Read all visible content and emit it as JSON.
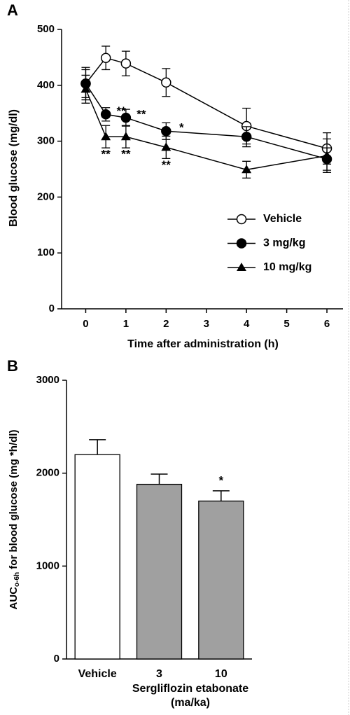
{
  "chart_data": [
    {
      "type": "line",
      "panel": "A",
      "xlabel": "Time after administration (h)",
      "ylabel": "Blood glucose (mg/dl)",
      "x": [
        0,
        0.5,
        1,
        2,
        4,
        6
      ],
      "xlim": [
        -0.6,
        6.4
      ],
      "xticks": [
        0,
        1,
        2,
        3,
        4,
        5,
        6
      ],
      "ylim": [
        0,
        500
      ],
      "yticks": [
        0,
        100,
        200,
        300,
        400,
        500
      ],
      "series": [
        {
          "name": "Vehicle",
          "color": "#000000",
          "marker": "circle-open",
          "values": [
            403,
            449,
            439,
            405,
            327,
            287
          ],
          "errors": [
            29,
            21,
            22,
            25,
            32,
            28
          ],
          "annotations": [
            null,
            null,
            null,
            null,
            null,
            null
          ]
        },
        {
          "name": "3 mg/kg",
          "color": "#000000",
          "marker": "circle",
          "values": [
            403,
            348,
            342,
            318,
            308,
            268
          ],
          "errors": [
            25,
            12,
            15,
            15,
            18,
            20
          ],
          "annotations": [
            null,
            "**",
            "**",
            "*",
            null,
            null
          ]
        },
        {
          "name": "10 mg/kg",
          "color": "#000000",
          "marker": "triangle",
          "values": [
            393,
            308,
            308,
            289,
            249,
            274
          ],
          "errors": [
            25,
            20,
            20,
            20,
            15,
            30
          ],
          "annotations": [
            null,
            "**",
            "**",
            "**",
            null,
            null
          ]
        }
      ]
    },
    {
      "type": "bar",
      "panel": "B",
      "xlabel": [
        "Sergliflozin etabonate",
        "(ma/ka)"
      ],
      "ylabel": {
        "main": "AUC",
        "sub": "o-6h",
        "rest": " for blood glucose (mg *h/dl)"
      },
      "categories": [
        "Vehicle",
        "3",
        "10"
      ],
      "values": [
        2200,
        1880,
        1700
      ],
      "errors": [
        160,
        110,
        110
      ],
      "colors": [
        "#ffffff",
        "#a0a0a0",
        "#a0a0a0"
      ],
      "annotations": [
        null,
        null,
        "*"
      ],
      "ylim": [
        0,
        3000
      ],
      "yticks": [
        0,
        1000,
        2000,
        3000
      ]
    }
  ]
}
